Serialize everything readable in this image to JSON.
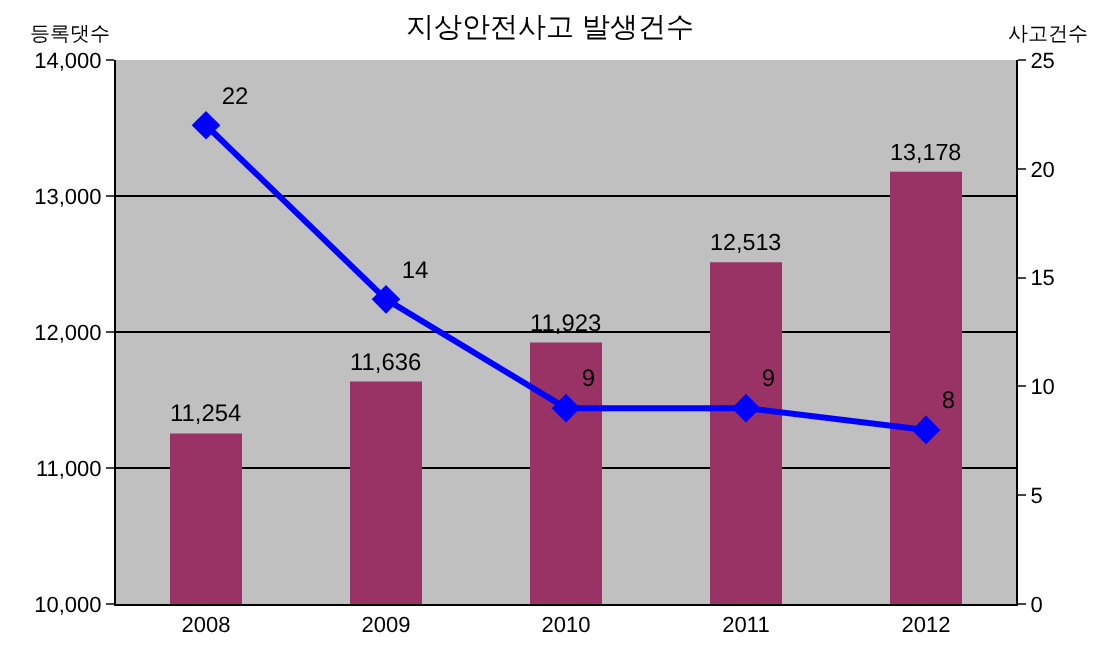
{
  "chart_data": {
    "type": "bar",
    "title": "지상안전사고 발생건수",
    "ylabel": "등록댓수",
    "y2label": "사고건수",
    "categories": [
      "2008",
      "2009",
      "2010",
      "2011",
      "2012"
    ],
    "series": [
      {
        "color": "#993366",
        "values": [
          11254,
          11636,
          11923,
          12513,
          13178
        ],
        "value_labels": [
          "11,254",
          "11,636",
          "11,923",
          "12,513",
          "13,178"
        ]
      },
      {
        "type": "line",
        "axis": "y2",
        "color": "#0000ff",
        "marker": "diamond",
        "values": [
          22,
          14,
          9,
          9,
          8
        ],
        "value_labels": [
          "22",
          "14",
          "9",
          "9",
          "8"
        ]
      }
    ],
    "ylim": [
      10000,
      14000
    ],
    "yticks": [
      {
        "value": 10000,
        "label": "10,000"
      },
      {
        "value": 11000,
        "label": "11,000"
      },
      {
        "value": 12000,
        "label": "12,000"
      },
      {
        "value": 13000,
        "label": "13,000"
      },
      {
        "value": 14000,
        "label": "14,000"
      }
    ],
    "y2lim": [
      0,
      25
    ],
    "y2ticks": [
      0,
      5,
      10,
      15,
      20,
      25
    ],
    "grid": "y",
    "legend": false
  }
}
